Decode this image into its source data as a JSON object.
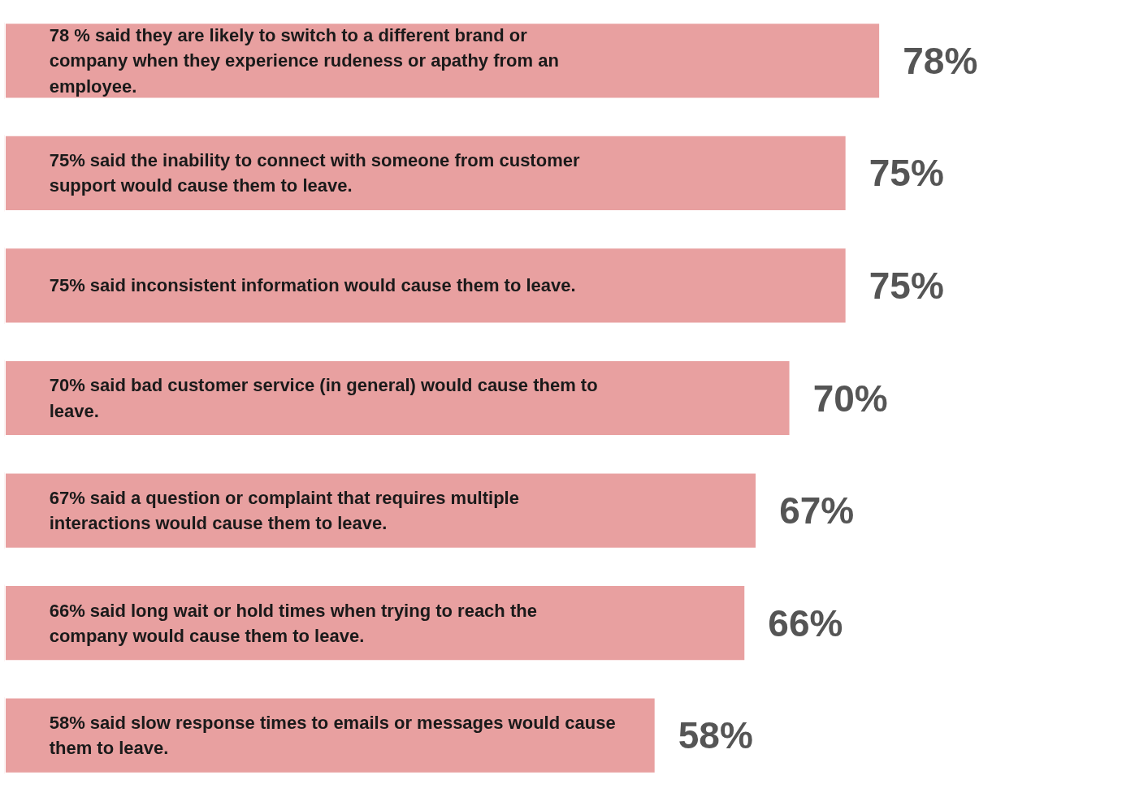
{
  "chart_data": {
    "type": "bar",
    "orientation": "horizontal",
    "categories": [
      "78 % said they are likely to switch to a different brand or company when they experience rudeness or apathy from an employee.",
      "75% said the inability to connect with someone from customer support would cause them to leave.",
      "75% said inconsistent information would cause them to leave.",
      "70% said bad customer service (in general) would cause them to leave.",
      "67% said a question or complaint that requires multiple interactions would cause them to leave.",
      "66% said long wait or hold times when trying to reach the company would cause them to leave.",
      "58% said slow response times to emails or messages would cause them to leave."
    ],
    "values": [
      78,
      75,
      75,
      70,
      67,
      66,
      58
    ],
    "color": "#e8a0a0",
    "value_labels": [
      "78%",
      "75%",
      "75%",
      "70%",
      "67%",
      "66%",
      "58%"
    ]
  }
}
